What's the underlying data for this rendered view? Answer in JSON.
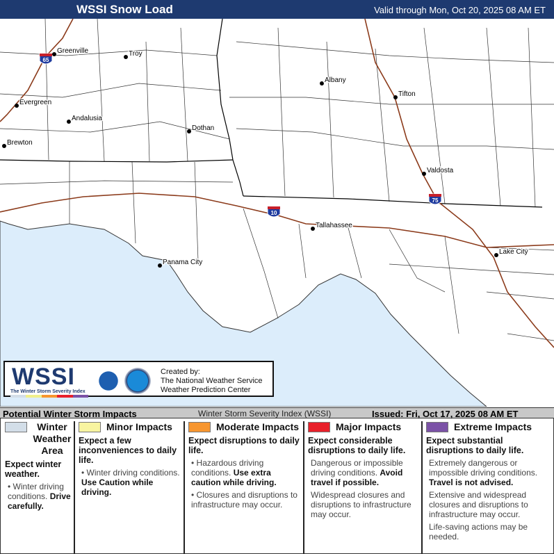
{
  "header": {
    "title": "WSSI Snow Load",
    "valid": "Valid through Mon, Oct 20, 2025 08 AM ET"
  },
  "map": {
    "colors": {
      "ocean": "#dcedfb",
      "land": "#ffffff",
      "county_lines": "#333333",
      "state_lines": "#000000",
      "interstate": "#8b3a1a",
      "shield": "#1e3a9e"
    },
    "cities": [
      {
        "name": "Greenville"
      },
      {
        "name": "Troy"
      },
      {
        "name": "Evergreen"
      },
      {
        "name": "Andalusia"
      },
      {
        "name": "Brewton"
      },
      {
        "name": "Dothan"
      },
      {
        "name": "Albany"
      },
      {
        "name": "Tifton"
      },
      {
        "name": "Valdosta"
      },
      {
        "name": "Tallahassee"
      },
      {
        "name": "Panama City"
      },
      {
        "name": "Lake City"
      }
    ],
    "interstates": [
      "65",
      "10",
      "75"
    ]
  },
  "logo": {
    "wordmark": "WSSI",
    "subtitle": "The Winter Storm Severity Index",
    "created_by": "Created by:",
    "org1": "The National Weather Service",
    "org2": "Weather Prediction Center"
  },
  "legend_bar": {
    "title": "Potential Winter Storm Impacts",
    "index": "Winter Storm Severity Index (WSSI)",
    "issued": "Issued: Fri, Oct 17, 2025 08 AM ET"
  },
  "categories": [
    {
      "label": "Winter Weather Area",
      "color": "#d3dee8",
      "lead": "Expect winter weather.",
      "items": [
        {
          "text": "Winter driving conditions.",
          "bold": "Drive carefully."
        }
      ]
    },
    {
      "label": "Minor Impacts",
      "color": "#f8f4a0",
      "lead": "Expect a few inconveniences to daily life.",
      "items": [
        {
          "text": "Winter driving conditions.",
          "bold": "Use Caution while driving."
        }
      ]
    },
    {
      "label": "Moderate Impacts",
      "color": "#f7962f",
      "lead": "Expect disruptions to daily life.",
      "items": [
        {
          "text": "Hazardous driving conditions.",
          "bold": "Use extra caution while driving."
        },
        {
          "text": "Closures and disruptions to infrastructure may occur.",
          "bold": ""
        }
      ]
    },
    {
      "label": "Major Impacts",
      "color": "#e8202a",
      "lead": "Expect considerable disruptions to daily life.",
      "items": [
        {
          "text": "Dangerous or impossible driving conditions.",
          "bold": "Avoid travel if possible."
        },
        {
          "text": "Widespread closures and disruptions to infrastructure may occur.",
          "bold": ""
        }
      ]
    },
    {
      "label": "Extreme Impacts",
      "color": "#7b52a6",
      "lead": "Expect substantial disruptions to daily life.",
      "items": [
        {
          "text": "Extremely dangerous or impossible driving conditions.",
          "bold": "Travel is not advised."
        },
        {
          "text": "Extensive and widespread closures and disruptions to infrastructure may occur.",
          "bold": ""
        },
        {
          "text": "Life-saving actions may be needed.",
          "bold": ""
        }
      ]
    }
  ]
}
